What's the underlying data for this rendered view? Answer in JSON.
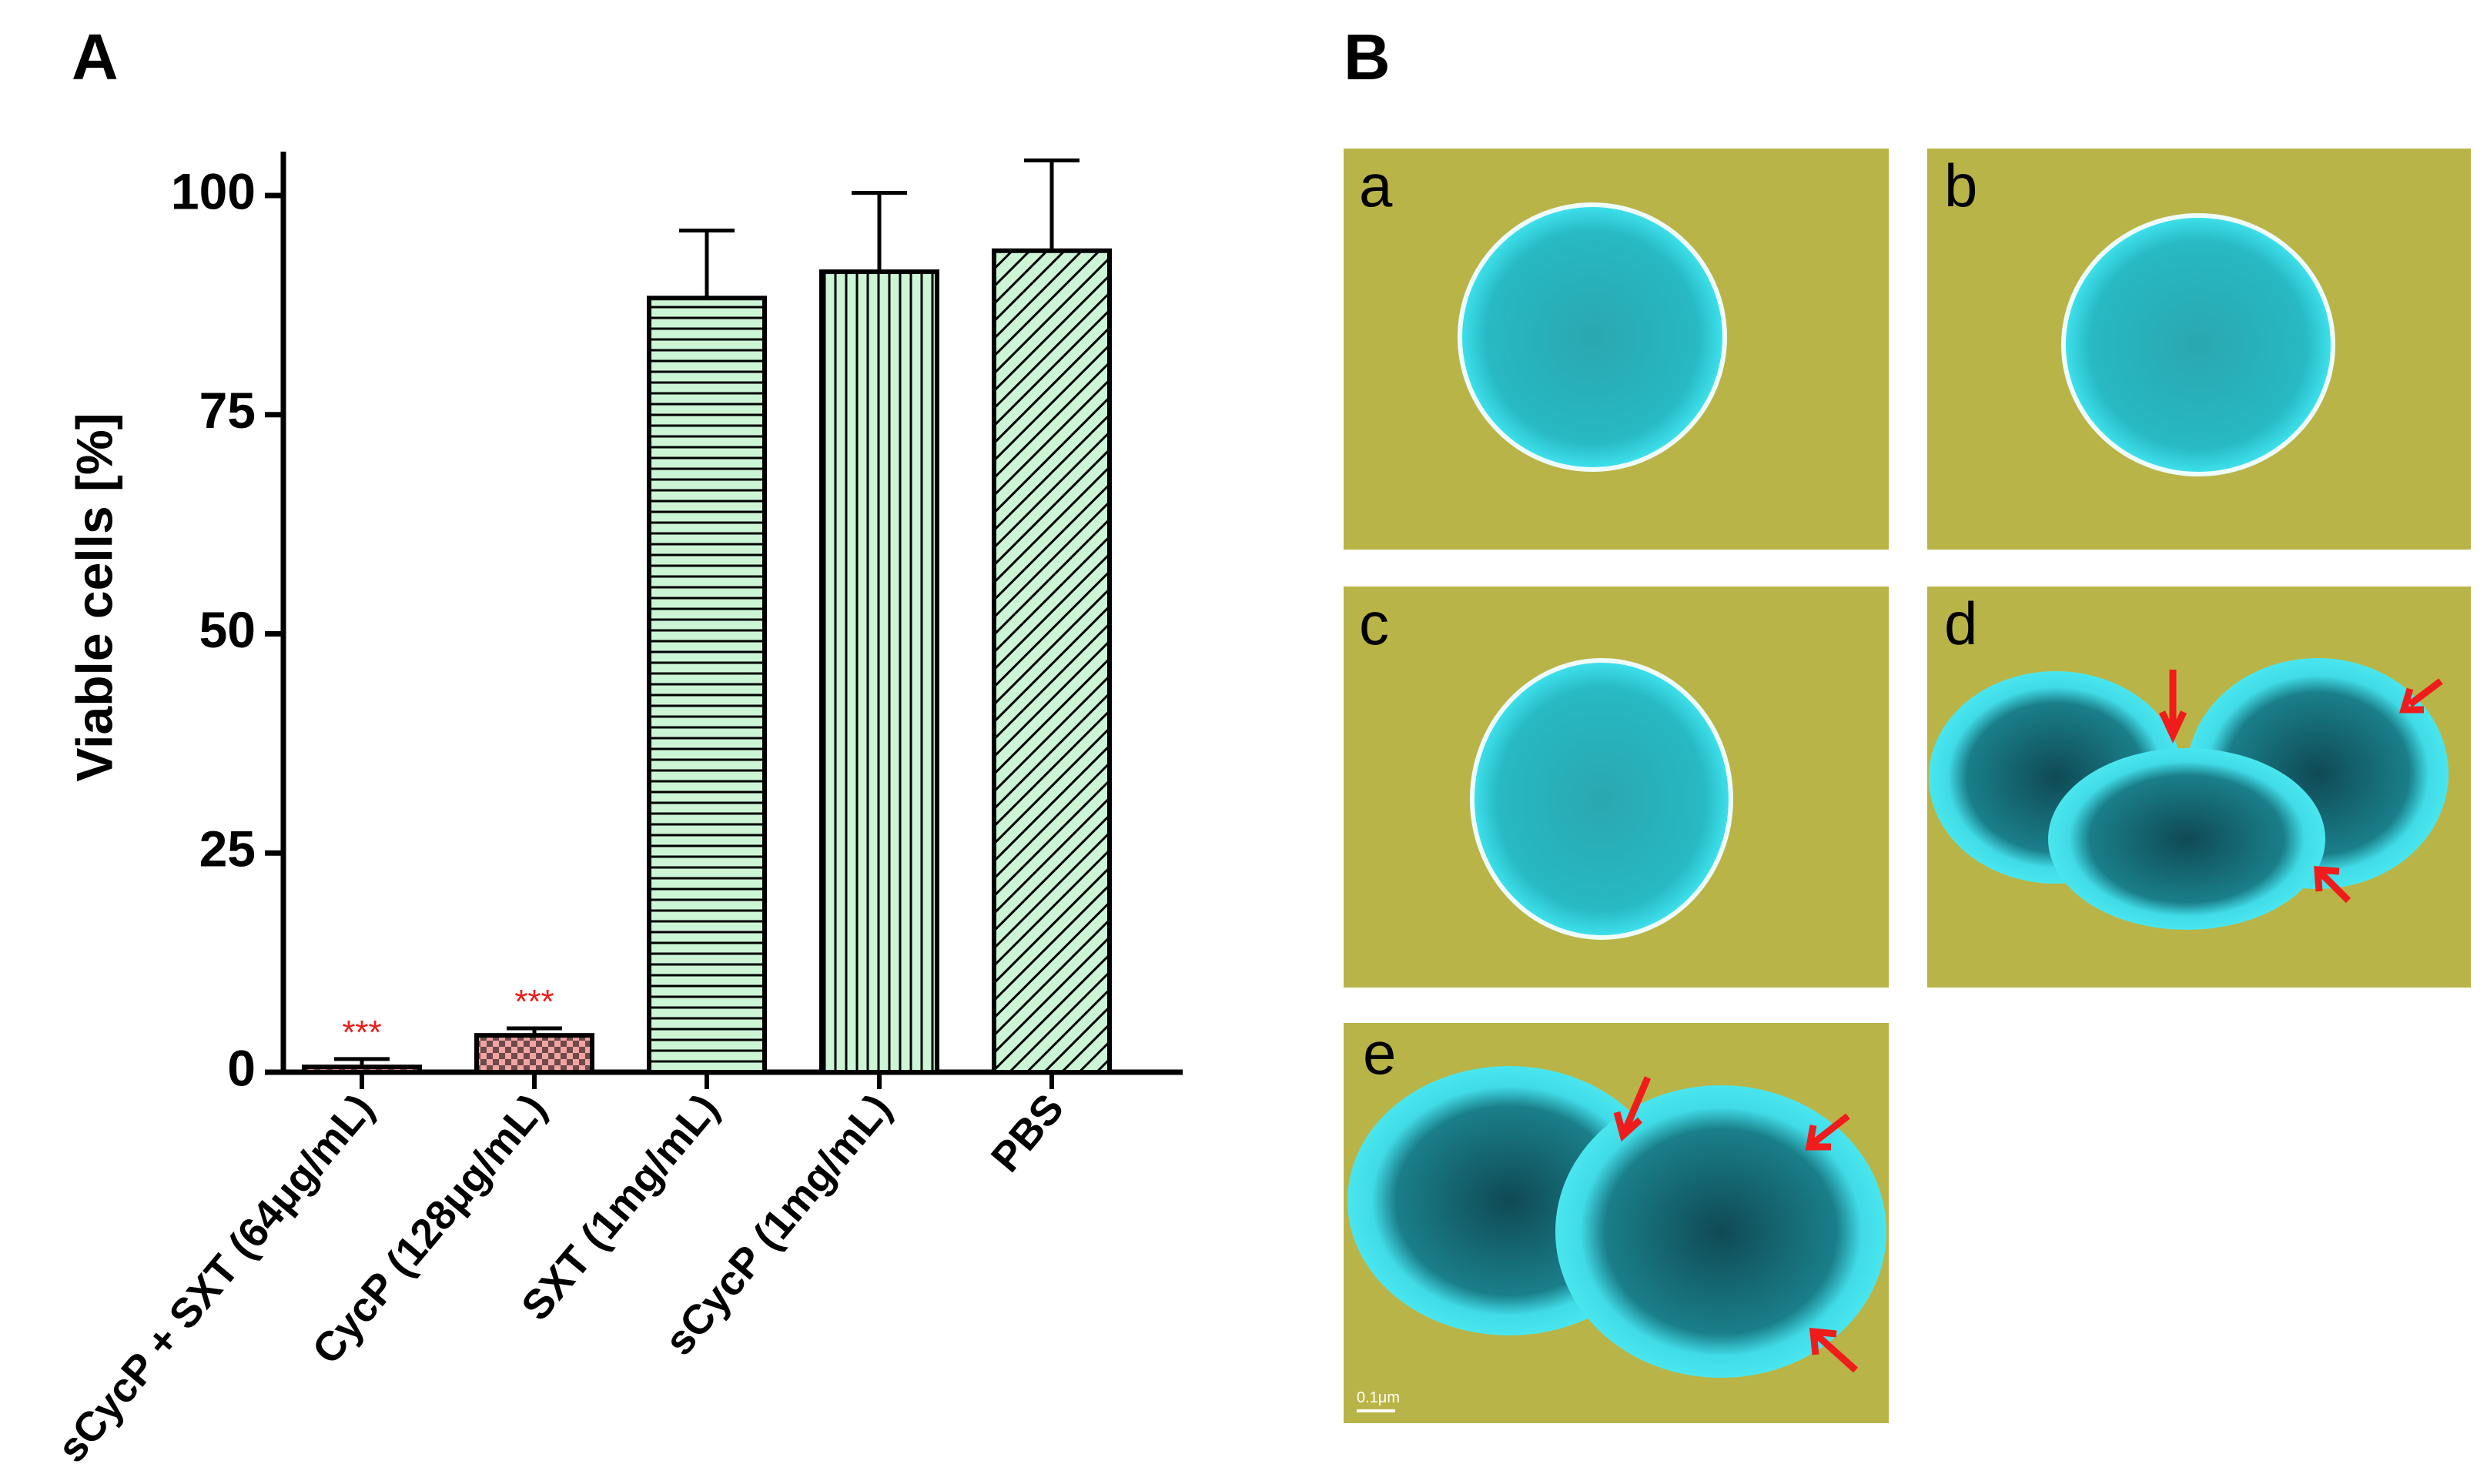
{
  "panel_labels": [
    "A",
    "B"
  ],
  "chart_data": {
    "type": "bar",
    "ylabel": "Viable cells [%]",
    "categories": [
      "sCycP + SXT (64μg/mL)",
      "CycP (128μg/mL)",
      "SXT (1mg/mL)",
      "sCycP (1mg/mL)",
      "PBS"
    ],
    "values": [
      0.6,
      4.2,
      88.3,
      91.3,
      93.7
    ],
    "errors": [
      0.9,
      0.8,
      7.7,
      9,
      10.3
    ],
    "significance": [
      "***",
      "***",
      null,
      null,
      null
    ],
    "significance_color": "#e8201c",
    "colors": [
      "#f4a3a3",
      "#f4a3a3",
      "#ccf5d6",
      "#ccf5d6",
      "#ccf5d6"
    ],
    "patterns": [
      "checker",
      "checker",
      "horizontal",
      "vertical",
      "diagonal"
    ],
    "ylim": [
      0,
      105
    ],
    "yticks": [
      0,
      25,
      50,
      75,
      100
    ],
    "grid": false
  },
  "micrographs": {
    "labels": [
      "a",
      "b",
      "c",
      "d",
      "e"
    ],
    "scale_bar": "0.1μm"
  }
}
